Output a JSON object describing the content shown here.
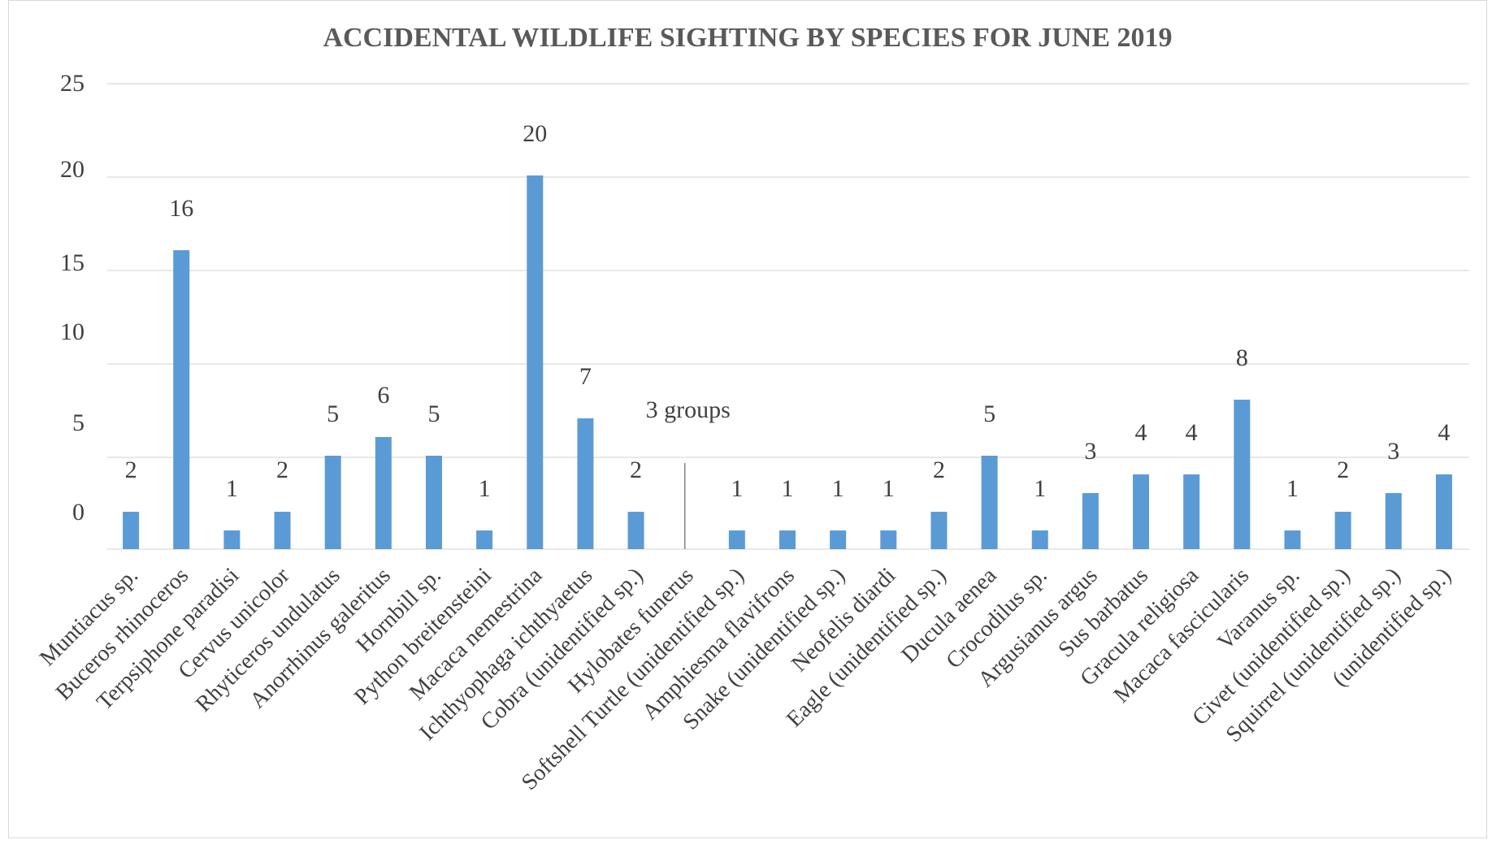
{
  "chart_data": {
    "type": "bar",
    "title": "ACCIDENTAL WILDLIFE SIGHTING BY SPECIES FOR JUNE 2019",
    "xlabel": "",
    "ylabel": "",
    "y_tick_labels": [
      "0",
      "5",
      "10",
      "15",
      "20",
      "25"
    ],
    "categories": [
      "Muntiacus sp.",
      "Buceros rhinoceros",
      "Terpsiphone paradisi",
      "Cervus unicolor",
      "Rhyticeros undulatus",
      "Anorrhinus galeritus",
      "Hornbill sp.",
      "Python breitensteini",
      "Macaca nemestrina",
      "Ichthyophaga ichthyaetus",
      "Cobra (unidentified sp.)",
      "Hylobates funerus",
      "Softshell Turtle (unidentified sp.)",
      "Amphiesma flavifrons",
      "Snake (unidentified sp.)",
      "Neofelis diardi",
      "Eagle (unidentified sp.)",
      "Ducula aenea",
      "Crocodilus sp.",
      "Argusianus argus",
      "Sus barbatus",
      "Gracula religiosa",
      "Macaca fascicularis",
      "Varanus sp.",
      "Civet (unidentified sp.)",
      "Squirrel (unidentified sp.)",
      "(unidentified sp.)"
    ],
    "values": [
      2,
      16,
      1,
      2,
      5,
      6,
      5,
      1,
      20,
      7,
      2,
      null,
      1,
      1,
      1,
      1,
      2,
      5,
      1,
      3,
      4,
      4,
      8,
      1,
      2,
      3,
      4
    ],
    "data_labels": [
      "2",
      "16",
      "1",
      "2",
      "5",
      "6",
      "5",
      "1",
      "20",
      "7",
      "2",
      "3 groups",
      "1",
      "1",
      "1",
      "1",
      "2",
      "5",
      "1",
      "3",
      "4",
      "4",
      "8",
      "1",
      "2",
      "3",
      "4"
    ],
    "grid": true,
    "legend": "none",
    "bar_color": "#5b9bd5"
  }
}
